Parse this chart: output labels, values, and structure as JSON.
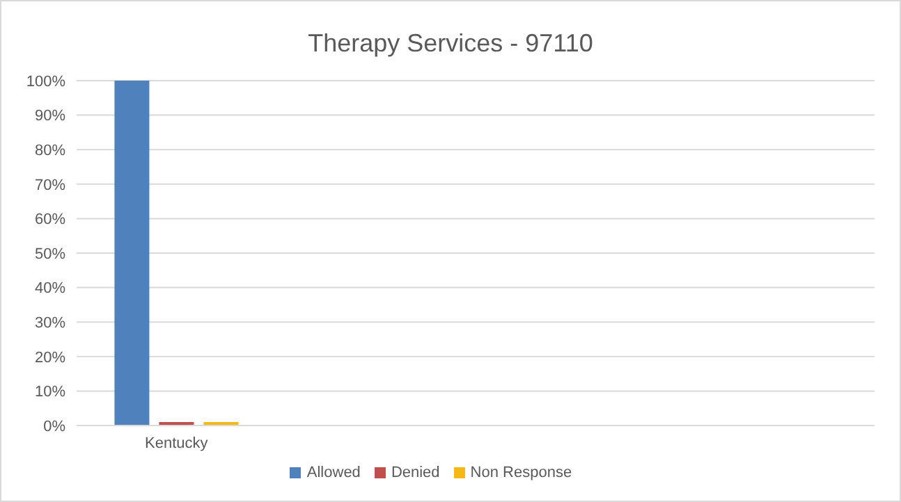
{
  "chart_data": {
    "type": "bar",
    "title": "Therapy Services - 97110",
    "categories": [
      "Kentucky",
      null,
      null,
      null
    ],
    "series": [
      {
        "name": "Allowed",
        "color": "#4f81bd",
        "values": [
          100,
          null,
          null,
          null
        ]
      },
      {
        "name": "Denied",
        "color": "#c0504d",
        "values": [
          1,
          null,
          null,
          null
        ]
      },
      {
        "name": "Non Response",
        "color": "#f4b915",
        "values": [
          1,
          null,
          null,
          null
        ]
      }
    ],
    "ylim": [
      0,
      100
    ],
    "yticks": [
      {
        "value": 0,
        "label": "0%"
      },
      {
        "value": 10,
        "label": "10%"
      },
      {
        "value": 20,
        "label": "20%"
      },
      {
        "value": 30,
        "label": "30%"
      },
      {
        "value": 40,
        "label": "40%"
      },
      {
        "value": 50,
        "label": "50%"
      },
      {
        "value": 60,
        "label": "60%"
      },
      {
        "value": 70,
        "label": "70%"
      },
      {
        "value": 80,
        "label": "80%"
      },
      {
        "value": 90,
        "label": "90%"
      },
      {
        "value": 100,
        "label": "100%"
      }
    ],
    "grid": "y",
    "legend": "bottom"
  }
}
